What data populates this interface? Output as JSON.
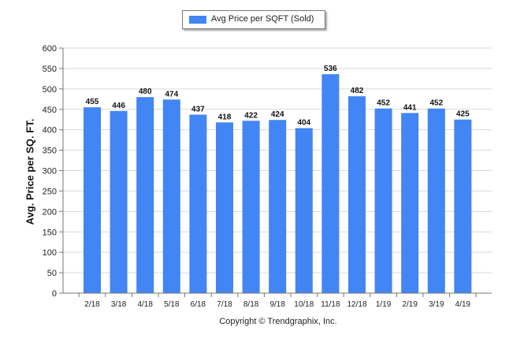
{
  "chart_data": {
    "type": "bar",
    "categories": [
      "2/18",
      "3/18",
      "4/18",
      "5/18",
      "6/18",
      "7/18",
      "8/18",
      "9/18",
      "10/18",
      "11/18",
      "12/18",
      "1/19",
      "2/19",
      "3/19",
      "4/19"
    ],
    "series": [
      {
        "name": "Avg Price per SQFT (Sold)",
        "values": [
          455,
          446,
          480,
          474,
          437,
          418,
          422,
          424,
          404,
          536,
          482,
          452,
          441,
          452,
          425
        ],
        "color": "#4285f4"
      }
    ],
    "ylabel": "Avg. Price per SQ. FT.",
    "ylim": [
      0,
      600
    ],
    "yticks": [
      0,
      50,
      100,
      150,
      200,
      250,
      300,
      350,
      400,
      450,
      500,
      550,
      600
    ],
    "grid": true,
    "legend": "top-center",
    "data_labels": true
  },
  "credit": "Copyright © Trendgraphix, Inc."
}
